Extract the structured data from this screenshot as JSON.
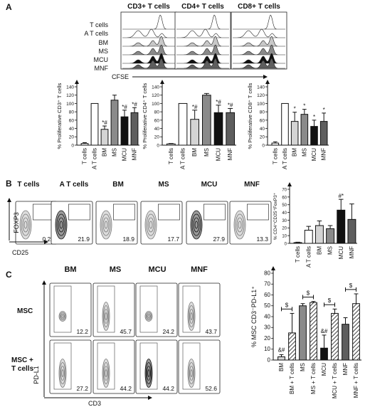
{
  "figure": {
    "panel_a": {
      "letter": "A",
      "histogram_titles": [
        "CD3+ T cells",
        "CD4+ T cells",
        "CD8+ T cells"
      ],
      "row_labels": [
        "T cells",
        "A T cells",
        "BM",
        "MS",
        "MCU",
        "MNF"
      ],
      "x_axis_label": "CFSE"
    },
    "panel_b": {
      "letter": "B",
      "plot_titles": [
        "T cells",
        "A T cells",
        "BM",
        "MS",
        "MCU",
        "MNF"
      ],
      "plot_values": [
        "0.22",
        "21.9",
        "18.9",
        "17.7",
        "27.9",
        "13.3"
      ],
      "y_axis_label": "FOXP3",
      "x_axis_label": "CD25",
      "bar_annotation": "#*"
    },
    "panel_c": {
      "letter": "C",
      "column_titles": [
        "BM",
        "MS",
        "MCU",
        "MNF"
      ],
      "row_labels": [
        "MSC",
        "MSC +\nT cells"
      ],
      "values_row1": [
        "12.2",
        "45.7",
        "24.2",
        "43.7"
      ],
      "values_row2": [
        "27.2",
        "44.2",
        "44.2",
        "52.6"
      ],
      "y_axis_label": "PD-L1",
      "x_axis_label": "CD3",
      "annotations": [
        "&#",
        "$",
        "$",
        "$",
        "$",
        "&#"
      ]
    }
  },
  "chart_data": [
    {
      "type": "bar",
      "ylabel": "% Proliferative CD3⁺ T cells",
      "ylim": [
        0,
        140
      ],
      "yticks": [
        0,
        20,
        40,
        60,
        80,
        100,
        120,
        140
      ],
      "categories": [
        "T cells",
        "A T cells",
        "BM",
        "MS",
        "MCU",
        "MNF"
      ],
      "values": [
        4,
        100,
        38,
        108,
        68,
        78
      ],
      "errors": [
        2,
        0,
        8,
        12,
        16,
        12
      ],
      "annotations": [
        "",
        "",
        "*#",
        "",
        "*#",
        "*#"
      ],
      "colors": [
        "#ffffff",
        "#ffffff",
        "#d4d4d4",
        "#8a8a8a",
        "#111111",
        "#5e5e5e"
      ]
    },
    {
      "type": "bar",
      "ylabel": "% Proliferative CD4⁺ T cells",
      "ylim": [
        0,
        140
      ],
      "yticks": [
        0,
        20,
        40,
        60,
        80,
        100,
        120,
        140
      ],
      "categories": [
        "T cells",
        "A T cells",
        "BM",
        "MS",
        "MCU",
        "MNF"
      ],
      "values": [
        3,
        100,
        62,
        120,
        78,
        78
      ],
      "errors": [
        1,
        0,
        22,
        4,
        18,
        10
      ],
      "annotations": [
        "",
        "",
        "*#",
        "",
        "*#",
        "*#"
      ],
      "colors": [
        "#ffffff",
        "#ffffff",
        "#d4d4d4",
        "#8a8a8a",
        "#111111",
        "#5e5e5e"
      ]
    },
    {
      "type": "bar",
      "ylabel": "% Proliferative CD8⁺ T cells",
      "ylim": [
        0,
        140
      ],
      "yticks": [
        0,
        20,
        40,
        60,
        80,
        100,
        120,
        140
      ],
      "categories": [
        "T cells",
        "A T cells",
        "BM",
        "MS",
        "MCU",
        "MNF"
      ],
      "values": [
        5,
        100,
        57,
        74,
        45,
        57
      ],
      "errors": [
        3,
        0,
        22,
        12,
        15,
        20
      ],
      "annotations": [
        "",
        "",
        "*",
        "*",
        "*",
        "*"
      ],
      "colors": [
        "#ffffff",
        "#ffffff",
        "#d4d4d4",
        "#8a8a8a",
        "#111111",
        "#5e5e5e"
      ]
    },
    {
      "type": "bar",
      "ylabel": "% CD4⁺CD25⁺FoxP3⁺",
      "ylim": [
        0,
        70
      ],
      "yticks": [
        0,
        10,
        20,
        30,
        40,
        50,
        60,
        70
      ],
      "categories": [
        "T cells",
        "A T cells",
        "BM",
        "MS",
        "MCU",
        "MNF"
      ],
      "values": [
        1,
        17,
        23,
        19,
        43,
        31
      ],
      "errors": [
        0.5,
        5,
        6,
        4,
        14,
        20
      ],
      "colors": [
        "#ffffff",
        "#ffffff",
        "#d4d4d4",
        "#8a8a8a",
        "#111111",
        "#5e5e5e"
      ]
    },
    {
      "type": "bar",
      "ylabel": "% MSC CD3⁻PD-L1⁺",
      "ylim": [
        0,
        80
      ],
      "yticks": [
        0,
        10,
        20,
        30,
        40,
        50,
        60,
        70,
        80
      ],
      "categories": [
        "BM",
        "BM + T cells",
        "MS",
        "MS + T cells",
        "MCU",
        "MCU + T cells",
        "MNF",
        "MNF + T cells"
      ],
      "values": [
        3,
        25,
        50,
        53,
        11,
        43,
        33,
        52
      ],
      "errors": [
        2,
        18,
        2,
        1,
        12,
        4,
        6,
        9
      ],
      "colors": [
        "#d4d4d4",
        "#d4d4d4",
        "#8a8a8a",
        "#8a8a8a",
        "#111111",
        "#111111",
        "#5e5e5e",
        "#5e5e5e"
      ],
      "hatched": [
        false,
        true,
        false,
        true,
        false,
        true,
        false,
        true
      ]
    }
  ]
}
